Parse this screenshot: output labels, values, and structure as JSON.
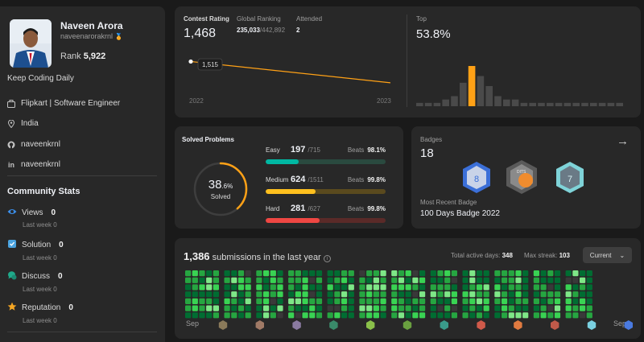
{
  "profile": {
    "name": "Naveen Arora",
    "handle": "naveenarorakrnl",
    "rank_label": "Rank",
    "rank": "5,922",
    "bio": "Keep Coding Daily",
    "company": "Flipkart | Software Engineer",
    "location": "India",
    "github": "naveenkrnl",
    "linkedin": "naveenkrnl"
  },
  "community": {
    "title": "Community Stats",
    "items": [
      {
        "label": "Views",
        "value": "0",
        "sub": "Last week 0",
        "icon": "eye-icon",
        "color": "#3b8ee8"
      },
      {
        "label": "Solution",
        "value": "0",
        "sub": "Last week 0",
        "icon": "solution-icon",
        "color": "#4aa3df"
      },
      {
        "label": "Discuss",
        "value": "0",
        "sub": "Last week 0",
        "icon": "discuss-icon",
        "color": "#1fa98a"
      },
      {
        "label": "Reputation",
        "value": "0",
        "sub": "Last week 0",
        "icon": "star-icon",
        "color": "#f5a623"
      }
    ]
  },
  "contest": {
    "rating_label": "Contest Rating",
    "rating": "1,468",
    "global_label": "Global Ranking",
    "global_rank": "235,033",
    "global_total": "/442,892",
    "attended_label": "Attended",
    "attended": "2",
    "tooltip": "1,515",
    "year_start": "2022",
    "year_end": "2023",
    "top_label": "Top",
    "top_value": "53.8%",
    "chart_data": {
      "type": "line",
      "x": [
        "2022",
        "2023"
      ],
      "series": [
        {
          "values": [
            1515,
            1468
          ]
        }
      ]
    },
    "histogram": {
      "type": "bar",
      "values": [
        1,
        1,
        1,
        2,
        3,
        7,
        12,
        9,
        6,
        3,
        2,
        2,
        1,
        1,
        1,
        1,
        1,
        1,
        1,
        1,
        1,
        1,
        1,
        1
      ],
      "highlight_index": 6,
      "accent": "#ffa116"
    }
  },
  "solved": {
    "title": "Solved Problems",
    "percent": "38",
    "percent_decimal": ".6%",
    "solved_label": "Solved",
    "progress": 0.386,
    "beats_label": "Beats",
    "levels": [
      {
        "name": "Easy",
        "count": "197",
        "total": "/715",
        "beats": "98.1%",
        "fraction": 0.2755,
        "color": "#00b8a3",
        "track": "#2a4a3f"
      },
      {
        "name": "Medium",
        "count": "624",
        "total": "/1511",
        "beats": "99.8%",
        "fraction": 0.413,
        "color": "#ffc01e",
        "track": "#5a4a1e"
      },
      {
        "name": "Hard",
        "count": "281",
        "total": "/627",
        "beats": "99.8%",
        "fraction": 0.448,
        "color": "#ef4743",
        "track": "#5a2a28"
      }
    ]
  },
  "badges": {
    "label": "Badges",
    "count": "18",
    "recent_label": "Most Recent Badge",
    "recent": "100 Days Badge 2022"
  },
  "submissions": {
    "count": "1,386",
    "title_suffix": "submissions in the last year",
    "active_label": "Total active days:",
    "active": "348",
    "streak_label": "Max streak:",
    "streak": "103",
    "filter": "Current",
    "month_start": "Sep",
    "month_end": "Sep"
  }
}
